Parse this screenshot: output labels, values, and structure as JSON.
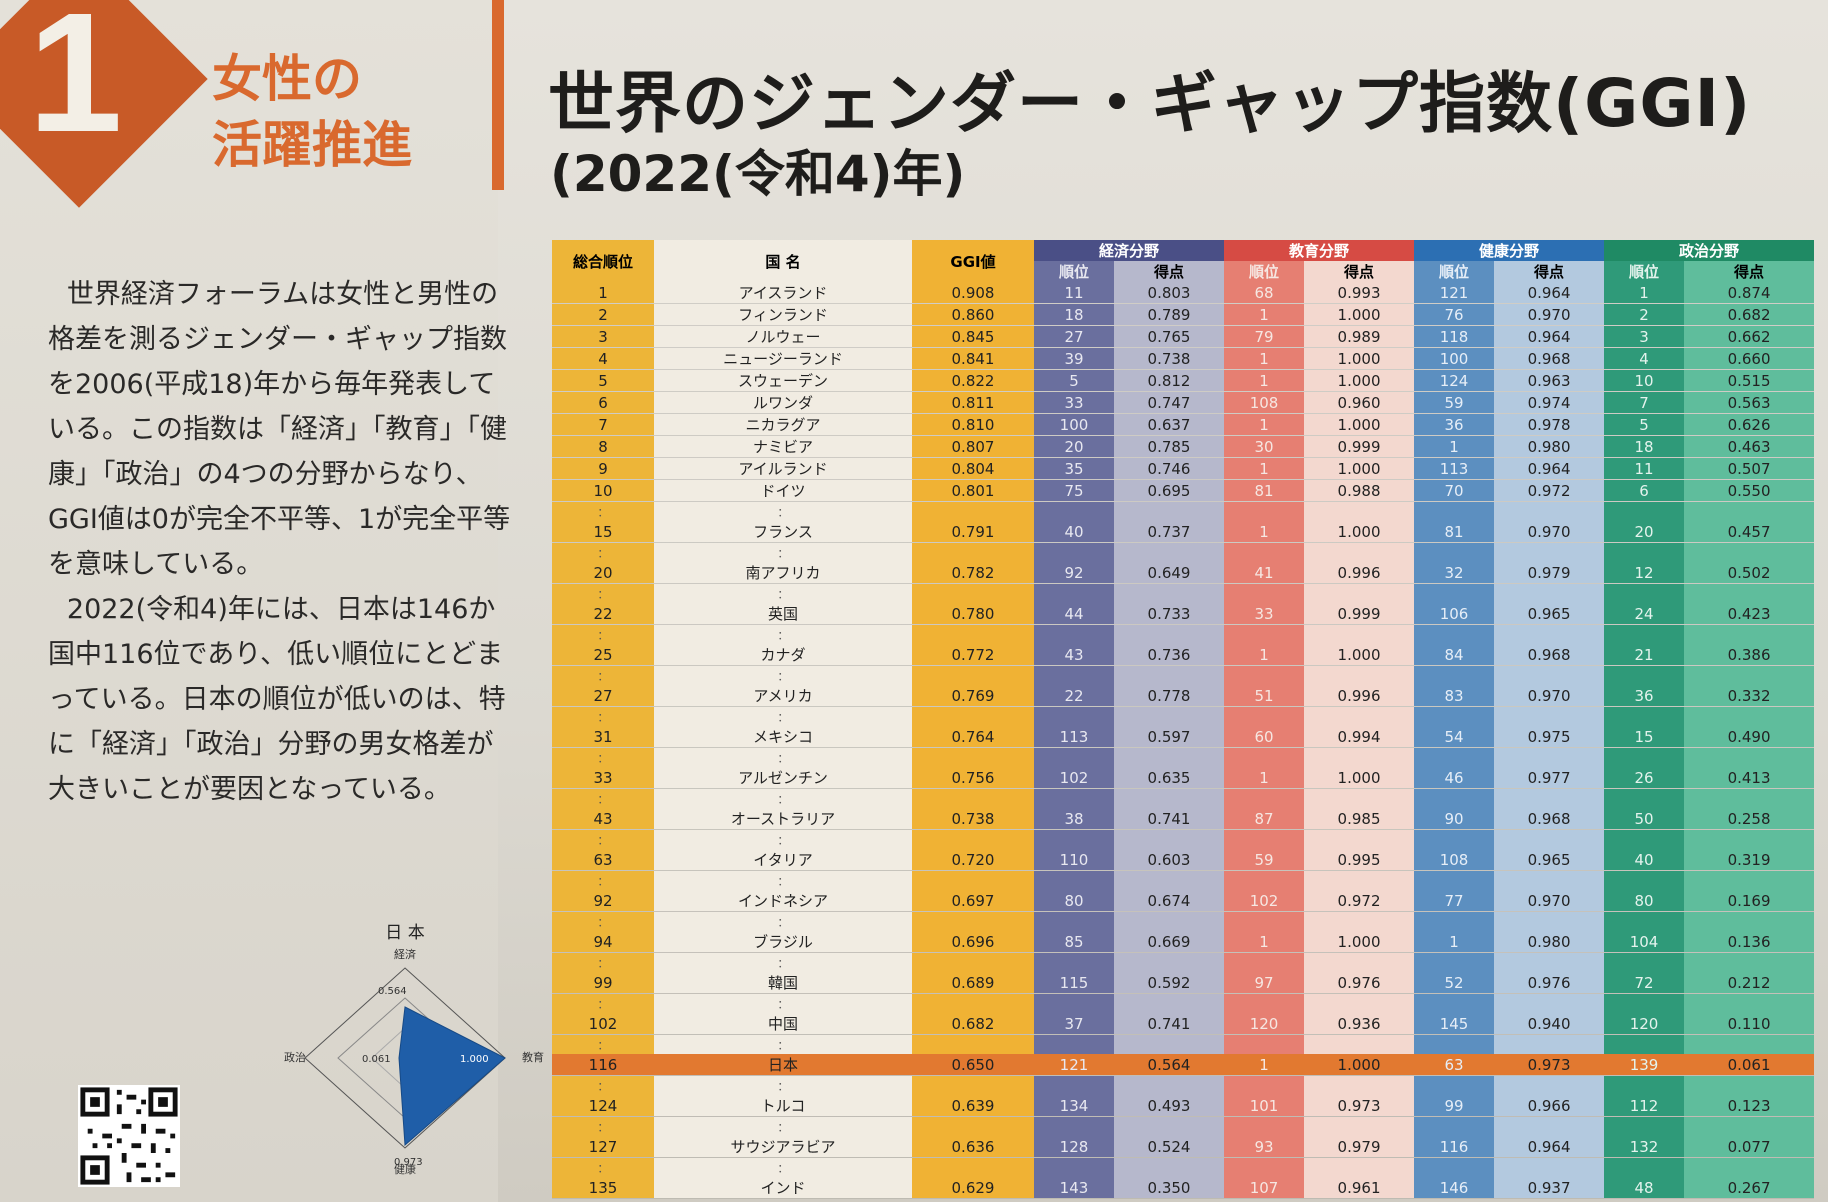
{
  "badge": {
    "number": "1",
    "theme": [
      "女性の",
      "活躍推進"
    ]
  },
  "title": "世界のジェンダー・ギャップ指数(GGI)",
  "subtitle": "(2022(令和4)年)",
  "description": [
    "世界経済フォーラムは女性と男性の格差を測るジェンダー・ギャップ指数を2006(平成18)年から毎年発表している。この指数は「経済」「教育」「健康」「政治」の4つの分野からなり、GGI値は0が完全不平等、1が完全平等を意味している。",
    "2022(令和4)年には、日本は146か国中116位であり、低い順位にとどまっている。日本の順位が低いのは、特に「経済」「政治」分野の男女格差が大きいことが要因となっている。"
  ],
  "radar": {
    "title": "日 本",
    "axes": [
      "経済",
      "教育",
      "健康",
      "政治"
    ],
    "values": [
      "0.564",
      "1.000",
      "0.973",
      "0.061"
    ]
  },
  "table": {
    "headers": {
      "rank": "総合順位",
      "country": "国 名",
      "ggi": "GGI値",
      "econ": "経済分野",
      "edu": "教育分野",
      "health": "健康分野",
      "pol": "政治分野",
      "sub_rank": "順位",
      "sub_score": "得点"
    },
    "gap_mark": "：",
    "rows": [
      {
        "rank": "1",
        "country": "アイスランド",
        "ggi": "0.908",
        "er": "11",
        "es": "0.803",
        "dr": "68",
        "ds": "0.993",
        "hr": "121",
        "hs": "0.964",
        "pr": "1",
        "ps": "0.874"
      },
      {
        "rank": "2",
        "country": "フィンランド",
        "ggi": "0.860",
        "er": "18",
        "es": "0.789",
        "dr": "1",
        "ds": "1.000",
        "hr": "76",
        "hs": "0.970",
        "pr": "2",
        "ps": "0.682"
      },
      {
        "rank": "3",
        "country": "ノルウェー",
        "ggi": "0.845",
        "er": "27",
        "es": "0.765",
        "dr": "79",
        "ds": "0.989",
        "hr": "118",
        "hs": "0.964",
        "pr": "3",
        "ps": "0.662"
      },
      {
        "rank": "4",
        "country": "ニュージーランド",
        "ggi": "0.841",
        "er": "39",
        "es": "0.738",
        "dr": "1",
        "ds": "1.000",
        "hr": "100",
        "hs": "0.968",
        "pr": "4",
        "ps": "0.660"
      },
      {
        "rank": "5",
        "country": "スウェーデン",
        "ggi": "0.822",
        "er": "5",
        "es": "0.812",
        "dr": "1",
        "ds": "1.000",
        "hr": "124",
        "hs": "0.963",
        "pr": "10",
        "ps": "0.515"
      },
      {
        "rank": "6",
        "country": "ルワンダ",
        "ggi": "0.811",
        "er": "33",
        "es": "0.747",
        "dr": "108",
        "ds": "0.960",
        "hr": "59",
        "hs": "0.974",
        "pr": "7",
        "ps": "0.563"
      },
      {
        "rank": "7",
        "country": "ニカラグア",
        "ggi": "0.810",
        "er": "100",
        "es": "0.637",
        "dr": "1",
        "ds": "1.000",
        "hr": "36",
        "hs": "0.978",
        "pr": "5",
        "ps": "0.626"
      },
      {
        "rank": "8",
        "country": "ナミビア",
        "ggi": "0.807",
        "er": "20",
        "es": "0.785",
        "dr": "30",
        "ds": "0.999",
        "hr": "1",
        "hs": "0.980",
        "pr": "18",
        "ps": "0.463"
      },
      {
        "rank": "9",
        "country": "アイルランド",
        "ggi": "0.804",
        "er": "35",
        "es": "0.746",
        "dr": "1",
        "ds": "1.000",
        "hr": "113",
        "hs": "0.964",
        "pr": "11",
        "ps": "0.507"
      },
      {
        "rank": "10",
        "country": "ドイツ",
        "ggi": "0.801",
        "er": "75",
        "es": "0.695",
        "dr": "81",
        "ds": "0.988",
        "hr": "70",
        "hs": "0.972",
        "pr": "6",
        "ps": "0.550"
      },
      {
        "gap": true
      },
      {
        "rank": "15",
        "country": "フランス",
        "ggi": "0.791",
        "er": "40",
        "es": "0.737",
        "dr": "1",
        "ds": "1.000",
        "hr": "81",
        "hs": "0.970",
        "pr": "20",
        "ps": "0.457"
      },
      {
        "gap": true
      },
      {
        "rank": "20",
        "country": "南アフリカ",
        "ggi": "0.782",
        "er": "92",
        "es": "0.649",
        "dr": "41",
        "ds": "0.996",
        "hr": "32",
        "hs": "0.979",
        "pr": "12",
        "ps": "0.502"
      },
      {
        "gap": true
      },
      {
        "rank": "22",
        "country": "英国",
        "ggi": "0.780",
        "er": "44",
        "es": "0.733",
        "dr": "33",
        "ds": "0.999",
        "hr": "106",
        "hs": "0.965",
        "pr": "24",
        "ps": "0.423"
      },
      {
        "gap": true
      },
      {
        "rank": "25",
        "country": "カナダ",
        "ggi": "0.772",
        "er": "43",
        "es": "0.736",
        "dr": "1",
        "ds": "1.000",
        "hr": "84",
        "hs": "0.968",
        "pr": "21",
        "ps": "0.386"
      },
      {
        "gap": true
      },
      {
        "rank": "27",
        "country": "アメリカ",
        "ggi": "0.769",
        "er": "22",
        "es": "0.778",
        "dr": "51",
        "ds": "0.996",
        "hr": "83",
        "hs": "0.970",
        "pr": "36",
        "ps": "0.332"
      },
      {
        "gap": true
      },
      {
        "rank": "31",
        "country": "メキシコ",
        "ggi": "0.764",
        "er": "113",
        "es": "0.597",
        "dr": "60",
        "ds": "0.994",
        "hr": "54",
        "hs": "0.975",
        "pr": "15",
        "ps": "0.490"
      },
      {
        "gap": true
      },
      {
        "rank": "33",
        "country": "アルゼンチン",
        "ggi": "0.756",
        "er": "102",
        "es": "0.635",
        "dr": "1",
        "ds": "1.000",
        "hr": "46",
        "hs": "0.977",
        "pr": "26",
        "ps": "0.413"
      },
      {
        "gap": true
      },
      {
        "rank": "43",
        "country": "オーストラリア",
        "ggi": "0.738",
        "er": "38",
        "es": "0.741",
        "dr": "87",
        "ds": "0.985",
        "hr": "90",
        "hs": "0.968",
        "pr": "50",
        "ps": "0.258"
      },
      {
        "gap": true
      },
      {
        "rank": "63",
        "country": "イタリア",
        "ggi": "0.720",
        "er": "110",
        "es": "0.603",
        "dr": "59",
        "ds": "0.995",
        "hr": "108",
        "hs": "0.965",
        "pr": "40",
        "ps": "0.319"
      },
      {
        "gap": true
      },
      {
        "rank": "92",
        "country": "インドネシア",
        "ggi": "0.697",
        "er": "80",
        "es": "0.674",
        "dr": "102",
        "ds": "0.972",
        "hr": "77",
        "hs": "0.970",
        "pr": "80",
        "ps": "0.169"
      },
      {
        "gap": true
      },
      {
        "rank": "94",
        "country": "ブラジル",
        "ggi": "0.696",
        "er": "85",
        "es": "0.669",
        "dr": "1",
        "ds": "1.000",
        "hr": "1",
        "hs": "0.980",
        "pr": "104",
        "ps": "0.136"
      },
      {
        "gap": true
      },
      {
        "rank": "99",
        "country": "韓国",
        "ggi": "0.689",
        "er": "115",
        "es": "0.592",
        "dr": "97",
        "ds": "0.976",
        "hr": "52",
        "hs": "0.976",
        "pr": "72",
        "ps": "0.212"
      },
      {
        "gap": true
      },
      {
        "rank": "102",
        "country": "中国",
        "ggi": "0.682",
        "er": "37",
        "es": "0.741",
        "dr": "120",
        "ds": "0.936",
        "hr": "145",
        "hs": "0.940",
        "pr": "120",
        "ps": "0.110"
      },
      {
        "gap": true
      },
      {
        "rank": "116",
        "country": "日本",
        "ggi": "0.650",
        "er": "121",
        "es": "0.564",
        "dr": "1",
        "ds": "1.000",
        "hr": "63",
        "hs": "0.973",
        "pr": "139",
        "ps": "0.061",
        "highlight": true
      },
      {
        "gap": true
      },
      {
        "rank": "124",
        "country": "トルコ",
        "ggi": "0.639",
        "er": "134",
        "es": "0.493",
        "dr": "101",
        "ds": "0.973",
        "hr": "99",
        "hs": "0.966",
        "pr": "112",
        "ps": "0.123"
      },
      {
        "gap": true
      },
      {
        "rank": "127",
        "country": "サウジアラビア",
        "ggi": "0.636",
        "er": "128",
        "es": "0.524",
        "dr": "93",
        "ds": "0.979",
        "hr": "116",
        "hs": "0.964",
        "pr": "132",
        "ps": "0.077"
      },
      {
        "gap": true
      },
      {
        "rank": "135",
        "country": "インド",
        "ggi": "0.629",
        "er": "143",
        "es": "0.350",
        "dr": "107",
        "ds": "0.961",
        "hr": "146",
        "hs": "0.937",
        "pr": "48",
        "ps": "0.267"
      }
    ]
  }
}
